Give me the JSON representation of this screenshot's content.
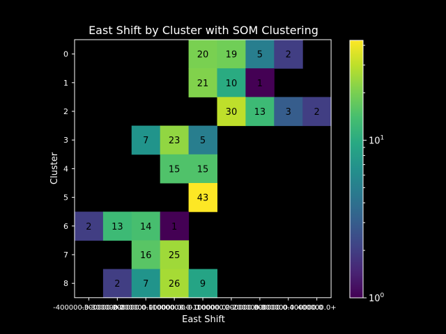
{
  "chart_data": {
    "type": "heatmap",
    "title": "East Shift by Cluster with SOM Clustering",
    "xlabel": "East Shift",
    "ylabel": "Cluster",
    "x_ticks": [
      "-400000.0",
      "-300000.0",
      "-200000.0",
      "-100000.0",
      "0.0",
      "100000.0",
      "200000.0",
      "300000.0",
      "400000.0"
    ],
    "x_tick_labels_shown": [
      "-400000.0-300000.0",
      "-300000.0-200000.0",
      "-200000.0-100000.0",
      "-100000.0-0.0",
      "0.0-100000.0",
      "100000.0-200000.0",
      "200000.0-300000.0",
      "300000.0-400000.0",
      "400000.0+"
    ],
    "y_ticks": [
      "0",
      "1",
      "2",
      "3",
      "4",
      "5",
      "6",
      "7",
      "8"
    ],
    "colorbar": {
      "scale": "log",
      "cmap": "viridis",
      "min": 1,
      "max": 43,
      "tick_labels": [
        "10^0",
        "10^1"
      ]
    },
    "background_color": "#000000",
    "cells": [
      {
        "row": 0,
        "col": 4,
        "value": 20
      },
      {
        "row": 0,
        "col": 5,
        "value": 19
      },
      {
        "row": 0,
        "col": 6,
        "value": 5
      },
      {
        "row": 0,
        "col": 7,
        "value": 2
      },
      {
        "row": 1,
        "col": 4,
        "value": 21
      },
      {
        "row": 1,
        "col": 5,
        "value": 10
      },
      {
        "row": 1,
        "col": 6,
        "value": 1
      },
      {
        "row": 2,
        "col": 5,
        "value": 30
      },
      {
        "row": 2,
        "col": 6,
        "value": 13
      },
      {
        "row": 2,
        "col": 7,
        "value": 3
      },
      {
        "row": 2,
        "col": 8,
        "value": 2
      },
      {
        "row": 3,
        "col": 2,
        "value": 7
      },
      {
        "row": 3,
        "col": 3,
        "value": 23
      },
      {
        "row": 3,
        "col": 4,
        "value": 5
      },
      {
        "row": 4,
        "col": 3,
        "value": 15
      },
      {
        "row": 4,
        "col": 4,
        "value": 15
      },
      {
        "row": 5,
        "col": 4,
        "value": 43
      },
      {
        "row": 6,
        "col": 0,
        "value": 2
      },
      {
        "row": 6,
        "col": 1,
        "value": 13
      },
      {
        "row": 6,
        "col": 2,
        "value": 14
      },
      {
        "row": 6,
        "col": 3,
        "value": 1
      },
      {
        "row": 7,
        "col": 2,
        "value": 16
      },
      {
        "row": 7,
        "col": 3,
        "value": 25
      },
      {
        "row": 8,
        "col": 1,
        "value": 2
      },
      {
        "row": 8,
        "col": 2,
        "value": 7
      },
      {
        "row": 8,
        "col": 3,
        "value": 26
      },
      {
        "row": 8,
        "col": 4,
        "value": 9
      }
    ]
  }
}
